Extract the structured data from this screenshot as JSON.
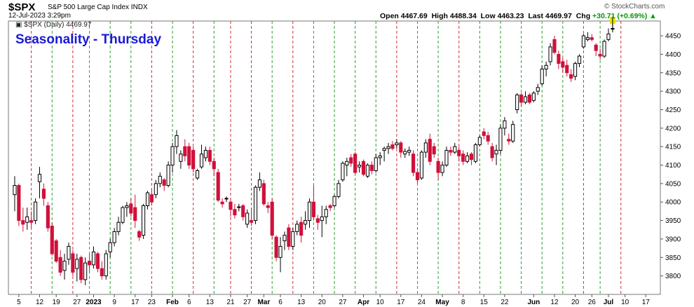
{
  "header": {
    "symbol": "$SPX",
    "name": "S&P 500 Large Cap Index",
    "exchange": "INDX",
    "date": "12-Jul-2023 3:29pm",
    "open_label": "Open",
    "open": "4467.69",
    "high_label": "High",
    "high": "4488.34",
    "low_label": "Low",
    "low": "4463.23",
    "last_label": "Last",
    "last": "4469.97",
    "chg_label": "Chg",
    "chg": "+30.71 (+0.69%)",
    "watermark": "© StockCharts.com",
    "legend": "$SPX (Daily) 4469.97"
  },
  "overlay_title": "Seasonality - Thursday",
  "colors": {
    "up": "#000000",
    "down": "#d0103a",
    "green_line": "#2e9e2e",
    "red_line": "#d03030",
    "title": "#1a1ad6",
    "last_marker": "#f0e000"
  },
  "chart_data": {
    "type": "candlestick",
    "title": "",
    "ylim": [
      3750,
      4490
    ],
    "y_ticks": [
      3800,
      3850,
      3900,
      3950,
      4000,
      4050,
      4100,
      4150,
      4200,
      4250,
      4300,
      4350,
      4400,
      4450
    ],
    "x_ticks": [
      {
        "i": 1,
        "label": "5"
      },
      {
        "i": 6,
        "label": "12"
      },
      {
        "i": 10,
        "label": "19"
      },
      {
        "i": 15,
        "label": "27"
      },
      {
        "i": 19,
        "label": "2023",
        "bold": true
      },
      {
        "i": 24,
        "label": "9"
      },
      {
        "i": 29,
        "label": "17"
      },
      {
        "i": 33,
        "label": "23"
      },
      {
        "i": 38,
        "label": "Feb",
        "bold": true
      },
      {
        "i": 42,
        "label": "6"
      },
      {
        "i": 47,
        "label": "13"
      },
      {
        "i": 52,
        "label": "21"
      },
      {
        "i": 56,
        "label": "27"
      },
      {
        "i": 60,
        "label": "Mar",
        "bold": true
      },
      {
        "i": 64,
        "label": "6"
      },
      {
        "i": 69,
        "label": "13"
      },
      {
        "i": 74,
        "label": "20"
      },
      {
        "i": 79,
        "label": "27"
      },
      {
        "i": 84,
        "label": "Apr",
        "bold": true
      },
      {
        "i": 88,
        "label": "10"
      },
      {
        "i": 93,
        "label": "17"
      },
      {
        "i": 98,
        "label": "24"
      },
      {
        "i": 103,
        "label": "May",
        "bold": true
      },
      {
        "i": 108,
        "label": "8"
      },
      {
        "i": 113,
        "label": "15"
      },
      {
        "i": 118,
        "label": "22"
      },
      {
        "i": 125,
        "label": "Jun",
        "bold": true
      },
      {
        "i": 130,
        "label": "12"
      },
      {
        "i": 135,
        "label": "20"
      },
      {
        "i": 139,
        "label": "26"
      },
      {
        "i": 143,
        "label": "Jul",
        "bold": true
      },
      {
        "i": 147,
        "label": "10"
      },
      {
        "i": 152,
        "label": "17"
      }
    ],
    "thursday_lines": [
      {
        "i": 4,
        "c": "r"
      },
      {
        "i": 9,
        "c": "g"
      },
      {
        "i": 14,
        "c": "r"
      },
      {
        "i": 18,
        "c": "g"
      },
      {
        "i": 23,
        "c": "g"
      },
      {
        "i": 28,
        "c": "g"
      },
      {
        "i": 33,
        "c": "r"
      },
      {
        "i": 38,
        "c": "g"
      },
      {
        "i": 43,
        "c": "r"
      },
      {
        "i": 48,
        "c": "g"
      },
      {
        "i": 52,
        "c": "r"
      },
      {
        "i": 57,
        "c": "r"
      },
      {
        "i": 62,
        "c": "g"
      },
      {
        "i": 67,
        "c": "r"
      },
      {
        "i": 72,
        "c": "g"
      },
      {
        "i": 77,
        "c": "g"
      },
      {
        "i": 82,
        "c": "g"
      },
      {
        "i": 87,
        "c": "g"
      },
      {
        "i": 92,
        "c": "r"
      },
      {
        "i": 97,
        "c": "g"
      },
      {
        "i": 102,
        "c": "g"
      },
      {
        "i": 107,
        "c": "r"
      },
      {
        "i": 112,
        "c": "g"
      },
      {
        "i": 117,
        "c": "g"
      },
      {
        "i": 122,
        "c": "g"
      },
      {
        "i": 127,
        "c": "g"
      },
      {
        "i": 132,
        "c": "g"
      },
      {
        "i": 137,
        "c": "r"
      },
      {
        "i": 141,
        "c": "g"
      },
      {
        "i": 146,
        "c": "r"
      }
    ],
    "candles": [
      {
        "o": 4020,
        "h": 4070,
        "l": 3975,
        "c": 4045
      },
      {
        "o": 4045,
        "h": 4050,
        "l": 3935,
        "c": 3950
      },
      {
        "o": 3950,
        "h": 3985,
        "l": 3920,
        "c": 3940
      },
      {
        "o": 3945,
        "h": 3985,
        "l": 3925,
        "c": 3960
      },
      {
        "o": 3950,
        "h": 3975,
        "l": 3930,
        "c": 3945
      },
      {
        "o": 3950,
        "h": 4010,
        "l": 3940,
        "c": 4000
      },
      {
        "o": 4055,
        "h": 4095,
        "l": 4010,
        "c": 4075
      },
      {
        "o": 4035,
        "h": 4050,
        "l": 3990,
        "c": 4010
      },
      {
        "o": 3990,
        "h": 4000,
        "l": 3920,
        "c": 3930
      },
      {
        "o": 3935,
        "h": 3945,
        "l": 3855,
        "c": 3860
      },
      {
        "o": 3895,
        "h": 3900,
        "l": 3835,
        "c": 3840
      },
      {
        "o": 3850,
        "h": 3870,
        "l": 3800,
        "c": 3810
      },
      {
        "o": 3815,
        "h": 3860,
        "l": 3790,
        "c": 3840
      },
      {
        "o": 3845,
        "h": 3890,
        "l": 3830,
        "c": 3880
      },
      {
        "o": 3860,
        "h": 3870,
        "l": 3800,
        "c": 3810
      },
      {
        "o": 3820,
        "h": 3860,
        "l": 3785,
        "c": 3845
      },
      {
        "o": 3850,
        "h": 3855,
        "l": 3780,
        "c": 3790
      },
      {
        "o": 3790,
        "h": 3850,
        "l": 3775,
        "c": 3835
      },
      {
        "o": 3840,
        "h": 3860,
        "l": 3810,
        "c": 3830
      },
      {
        "o": 3830,
        "h": 3880,
        "l": 3820,
        "c": 3865
      },
      {
        "o": 3860,
        "h": 3865,
        "l": 3810,
        "c": 3820
      },
      {
        "o": 3820,
        "h": 3840,
        "l": 3790,
        "c": 3800
      },
      {
        "o": 3800,
        "h": 3870,
        "l": 3790,
        "c": 3860
      },
      {
        "o": 3865,
        "h": 3900,
        "l": 3850,
        "c": 3890
      },
      {
        "o": 3890,
        "h": 3930,
        "l": 3880,
        "c": 3920
      },
      {
        "o": 3920,
        "h": 3960,
        "l": 3910,
        "c": 3945
      },
      {
        "o": 3945,
        "h": 3990,
        "l": 3940,
        "c": 3985
      },
      {
        "o": 3985,
        "h": 4000,
        "l": 3960,
        "c": 3990
      },
      {
        "o": 3995,
        "h": 4010,
        "l": 3960,
        "c": 3970
      },
      {
        "o": 3985,
        "h": 4020,
        "l": 3930,
        "c": 3950
      },
      {
        "o": 3920,
        "h": 3925,
        "l": 3895,
        "c": 3905
      },
      {
        "o": 3910,
        "h": 3995,
        "l": 3900,
        "c": 3990
      },
      {
        "o": 3990,
        "h": 4030,
        "l": 3980,
        "c": 4025
      },
      {
        "o": 4020,
        "h": 4035,
        "l": 3990,
        "c": 4000
      },
      {
        "o": 4020,
        "h": 4060,
        "l": 4010,
        "c": 4050
      },
      {
        "o": 4050,
        "h": 4080,
        "l": 4040,
        "c": 4070
      },
      {
        "o": 4060,
        "h": 4065,
        "l": 4030,
        "c": 4045
      },
      {
        "o": 4045,
        "h": 4110,
        "l": 4040,
        "c": 4100
      },
      {
        "o": 4100,
        "h": 4160,
        "l": 4080,
        "c": 4150
      },
      {
        "o": 4150,
        "h": 4195,
        "l": 4130,
        "c": 4180
      },
      {
        "o": 4110,
        "h": 4140,
        "l": 4090,
        "c": 4130
      },
      {
        "o": 4150,
        "h": 4170,
        "l": 4110,
        "c": 4125
      },
      {
        "o": 4150,
        "h": 4160,
        "l": 4090,
        "c": 4100
      },
      {
        "o": 4140,
        "h": 4150,
        "l": 4080,
        "c": 4090
      },
      {
        "o": 4065,
        "h": 4090,
        "l": 4060,
        "c": 4085
      },
      {
        "o": 4095,
        "h": 4155,
        "l": 4090,
        "c": 4130
      },
      {
        "o": 4120,
        "h": 4150,
        "l": 4110,
        "c": 4140
      },
      {
        "o": 4140,
        "h": 4150,
        "l": 4100,
        "c": 4110
      },
      {
        "o": 4110,
        "h": 4120,
        "l": 4070,
        "c": 4090
      },
      {
        "o": 4080,
        "h": 4090,
        "l": 4000,
        "c": 4005
      },
      {
        "o": 4000,
        "h": 4010,
        "l": 3985,
        "c": 3995
      },
      {
        "o": 4010,
        "h": 4015,
        "l": 4000,
        "c": 4010
      },
      {
        "o": 4000,
        "h": 4010,
        "l": 3960,
        "c": 3980
      },
      {
        "o": 3980,
        "h": 3995,
        "l": 3955,
        "c": 3965
      },
      {
        "o": 3985,
        "h": 3995,
        "l": 3975,
        "c": 3987
      },
      {
        "o": 3990,
        "h": 3995,
        "l": 3950,
        "c": 3960
      },
      {
        "o": 3940,
        "h": 3980,
        "l": 3930,
        "c": 3970
      },
      {
        "o": 3950,
        "h": 3985,
        "l": 3935,
        "c": 3945
      },
      {
        "o": 3950,
        "h": 4045,
        "l": 3940,
        "c": 4040
      },
      {
        "o": 4040,
        "h": 4080,
        "l": 4030,
        "c": 4060
      },
      {
        "o": 4050,
        "h": 4060,
        "l": 3990,
        "c": 3995
      },
      {
        "o": 3990,
        "h": 4000,
        "l": 3970,
        "c": 3985
      },
      {
        "o": 4000,
        "h": 4010,
        "l": 3900,
        "c": 3910
      },
      {
        "o": 3905,
        "h": 3910,
        "l": 3840,
        "c": 3850
      },
      {
        "o": 3850,
        "h": 3905,
        "l": 3810,
        "c": 3880
      },
      {
        "o": 3895,
        "h": 3920,
        "l": 3870,
        "c": 3910
      },
      {
        "o": 3930,
        "h": 3940,
        "l": 3870,
        "c": 3880
      },
      {
        "o": 3880,
        "h": 3930,
        "l": 3870,
        "c": 3920
      },
      {
        "o": 3920,
        "h": 3950,
        "l": 3910,
        "c": 3940
      },
      {
        "o": 3945,
        "h": 3960,
        "l": 3890,
        "c": 3910
      },
      {
        "o": 3940,
        "h": 3975,
        "l": 3925,
        "c": 3950
      },
      {
        "o": 3950,
        "h": 4010,
        "l": 3930,
        "c": 4000
      },
      {
        "o": 4000,
        "h": 4045,
        "l": 3950,
        "c": 3960
      },
      {
        "o": 3955,
        "h": 3965,
        "l": 3925,
        "c": 3945
      },
      {
        "o": 3950,
        "h": 3990,
        "l": 3905,
        "c": 3960
      },
      {
        "o": 3960,
        "h": 3990,
        "l": 3940,
        "c": 3980
      },
      {
        "o": 3990,
        "h": 3995,
        "l": 3975,
        "c": 3985
      },
      {
        "o": 3990,
        "h": 4020,
        "l": 3985,
        "c": 4015
      },
      {
        "o": 4015,
        "h": 4060,
        "l": 4010,
        "c": 4050
      },
      {
        "o": 4060,
        "h": 4110,
        "l": 4055,
        "c": 4105
      },
      {
        "o": 4100,
        "h": 4120,
        "l": 4070,
        "c": 4110
      },
      {
        "o": 4120,
        "h": 4130,
        "l": 4095,
        "c": 4105
      },
      {
        "o": 4130,
        "h": 4135,
        "l": 4075,
        "c": 4080
      },
      {
        "o": 4095,
        "h": 4110,
        "l": 4080,
        "c": 4100
      },
      {
        "o": 4110,
        "h": 4115,
        "l": 4070,
        "c": 4075
      },
      {
        "o": 4070,
        "h": 4105,
        "l": 4065,
        "c": 4100
      },
      {
        "o": 4100,
        "h": 4110,
        "l": 4075,
        "c": 4085
      },
      {
        "o": 4085,
        "h": 4130,
        "l": 4080,
        "c": 4120
      },
      {
        "o": 4120,
        "h": 4135,
        "l": 4100,
        "c": 4125
      },
      {
        "o": 4140,
        "h": 4150,
        "l": 4110,
        "c": 4145
      },
      {
        "o": 4145,
        "h": 4160,
        "l": 4130,
        "c": 4150
      },
      {
        "o": 4155,
        "h": 4165,
        "l": 4140,
        "c": 4145
      },
      {
        "o": 4155,
        "h": 4170,
        "l": 4145,
        "c": 4160
      },
      {
        "o": 4160,
        "h": 4165,
        "l": 4120,
        "c": 4135
      },
      {
        "o": 4130,
        "h": 4145,
        "l": 4120,
        "c": 4137
      },
      {
        "o": 4135,
        "h": 4150,
        "l": 4125,
        "c": 4140
      },
      {
        "o": 4130,
        "h": 4140,
        "l": 4070,
        "c": 4080
      },
      {
        "o": 4080,
        "h": 4090,
        "l": 4050,
        "c": 4060
      },
      {
        "o": 4065,
        "h": 4140,
        "l": 4060,
        "c": 4135
      },
      {
        "o": 4135,
        "h": 4170,
        "l": 4120,
        "c": 4160
      },
      {
        "o": 4170,
        "h": 4185,
        "l": 4100,
        "c": 4110
      },
      {
        "o": 4150,
        "h": 4160,
        "l": 4120,
        "c": 4130
      },
      {
        "o": 4110,
        "h": 4120,
        "l": 4060,
        "c": 4080
      },
      {
        "o": 4080,
        "h": 4110,
        "l": 4070,
        "c": 4100
      },
      {
        "o": 4100,
        "h": 4150,
        "l": 4095,
        "c": 4140
      },
      {
        "o": 4140,
        "h": 4150,
        "l": 4125,
        "c": 4135
      },
      {
        "o": 4135,
        "h": 4160,
        "l": 4130,
        "c": 4150
      },
      {
        "o": 4140,
        "h": 4150,
        "l": 4110,
        "c": 4125
      },
      {
        "o": 4130,
        "h": 4140,
        "l": 4100,
        "c": 4110
      },
      {
        "o": 4110,
        "h": 4135,
        "l": 4105,
        "c": 4125
      },
      {
        "o": 4130,
        "h": 4135,
        "l": 4100,
        "c": 4115
      },
      {
        "o": 4110,
        "h": 4160,
        "l": 4105,
        "c": 4155
      },
      {
        "o": 4155,
        "h": 4180,
        "l": 4150,
        "c": 4175
      },
      {
        "o": 4190,
        "h": 4200,
        "l": 4170,
        "c": 4180
      },
      {
        "o": 4180,
        "h": 4190,
        "l": 4155,
        "c": 4165
      },
      {
        "o": 4150,
        "h": 4160,
        "l": 4110,
        "c": 4120
      },
      {
        "o": 4130,
        "h": 4155,
        "l": 4100,
        "c": 4140
      },
      {
        "o": 4140,
        "h": 4210,
        "l": 4130,
        "c": 4200
      },
      {
        "o": 4200,
        "h": 4230,
        "l": 4180,
        "c": 4220
      },
      {
        "o": 4170,
        "h": 4185,
        "l": 4155,
        "c": 4165
      },
      {
        "o": 4165,
        "h": 4220,
        "l": 4160,
        "c": 4210
      },
      {
        "o": 4250,
        "h": 4295,
        "l": 4240,
        "c": 4290
      },
      {
        "o": 4290,
        "h": 4295,
        "l": 4260,
        "c": 4270
      },
      {
        "o": 4270,
        "h": 4300,
        "l": 4265,
        "c": 4285
      },
      {
        "o": 4290,
        "h": 4295,
        "l": 4265,
        "c": 4270
      },
      {
        "o": 4275,
        "h": 4300,
        "l": 4270,
        "c": 4295
      },
      {
        "o": 4300,
        "h": 4320,
        "l": 4290,
        "c": 4310
      },
      {
        "o": 4320,
        "h": 4370,
        "l": 4315,
        "c": 4360
      },
      {
        "o": 4360,
        "h": 4380,
        "l": 4340,
        "c": 4370
      },
      {
        "o": 4380,
        "h": 4430,
        "l": 4370,
        "c": 4420
      },
      {
        "o": 4440,
        "h": 4450,
        "l": 4400,
        "c": 4405
      },
      {
        "o": 4400,
        "h": 4410,
        "l": 4360,
        "c": 4375
      },
      {
        "o": 4380,
        "h": 4390,
        "l": 4350,
        "c": 4365
      },
      {
        "o": 4370,
        "h": 4385,
        "l": 4340,
        "c": 4350
      },
      {
        "o": 4345,
        "h": 4360,
        "l": 4325,
        "c": 4335
      },
      {
        "o": 4340,
        "h": 4380,
        "l": 4330,
        "c": 4375
      },
      {
        "o": 4375,
        "h": 4400,
        "l": 4365,
        "c": 4395
      },
      {
        "o": 4420,
        "h": 4455,
        "l": 4415,
        "c": 4450
      },
      {
        "o": 4440,
        "h": 4460,
        "l": 4435,
        "c": 4445
      },
      {
        "o": 4445,
        "h": 4455,
        "l": 4435,
        "c": 4440
      },
      {
        "o": 4425,
        "h": 4430,
        "l": 4395,
        "c": 4410
      },
      {
        "o": 4400,
        "h": 4415,
        "l": 4385,
        "c": 4395
      },
      {
        "o": 4395,
        "h": 4440,
        "l": 4390,
        "c": 4435
      },
      {
        "o": 4440,
        "h": 4470,
        "l": 4435,
        "c": 4455
      },
      {
        "o": 4468,
        "h": 4488,
        "l": 4463,
        "c": 4470
      }
    ]
  }
}
